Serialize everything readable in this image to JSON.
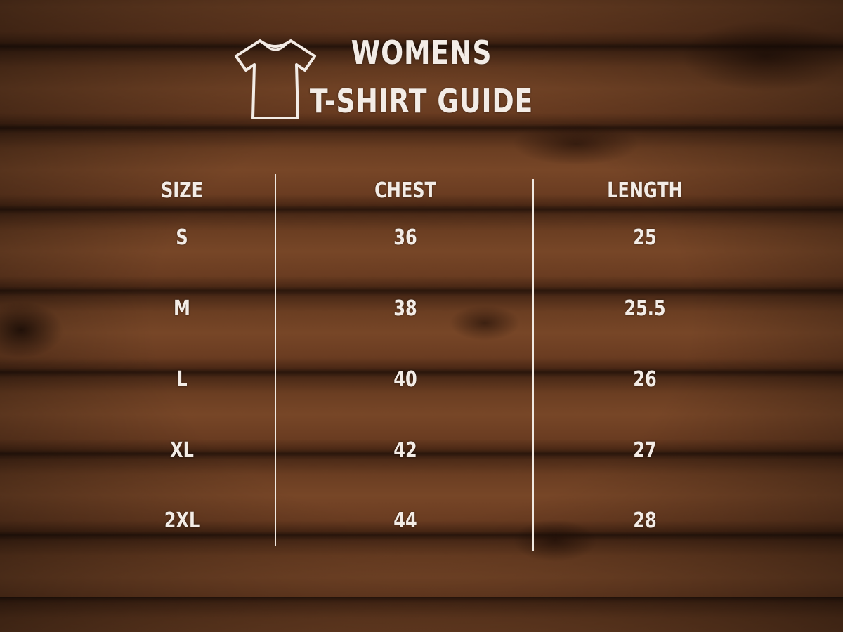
{
  "title": {
    "line1": "WOMENS",
    "line2": "T-SHIRT GUIDE",
    "icon": "tshirt-icon"
  },
  "table": {
    "headers": [
      "SIZE",
      "CHEST",
      "LENGTH"
    ],
    "rows": [
      [
        "S",
        "36",
        "25"
      ],
      [
        "M",
        "38",
        "25.5"
      ],
      [
        "L",
        "40",
        "26"
      ],
      [
        "XL",
        "42",
        "27"
      ],
      [
        "2XL",
        "44",
        "28"
      ]
    ]
  },
  "colors": {
    "text": "#f3ece6",
    "background": "#5a331e"
  }
}
